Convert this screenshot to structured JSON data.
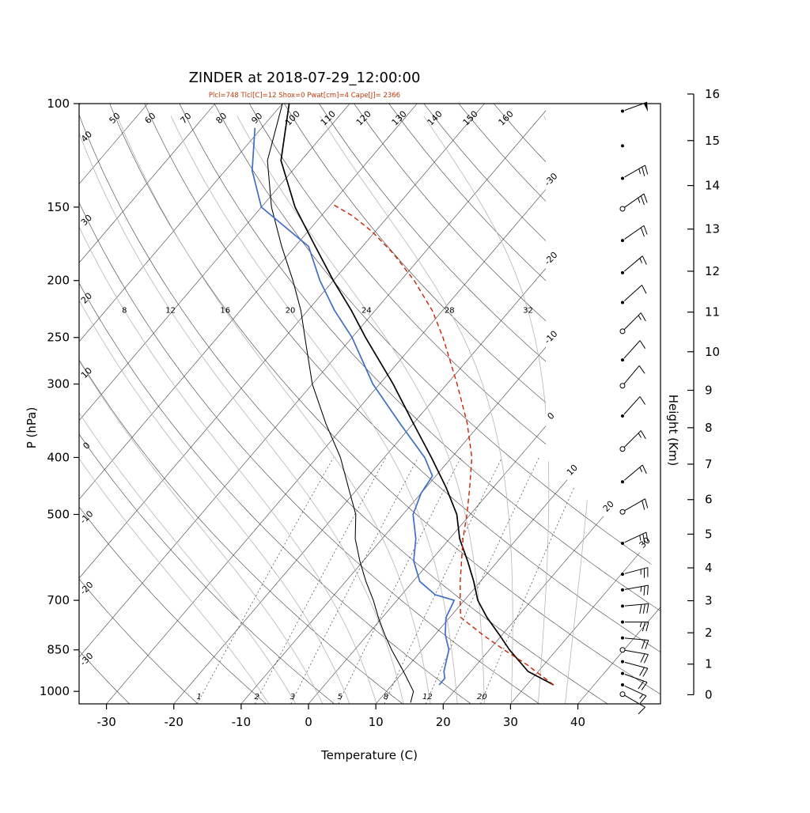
{
  "chart_data": {
    "type": "skewt_log_p",
    "station": "ZINDER",
    "title": "ZINDER at 2018-07-29_12:00:00",
    "subtitle": "Plcl=748 Tlcl[C]=12 Shox=0 Pwat[cm]=4 Cape[J]= 2366",
    "indices": {
      "plcl_hpa": 748,
      "tlcl_c": 12,
      "shox": 0,
      "pwat_cm": 4,
      "cape_j": 2366
    },
    "colors": {
      "temperature": "#000000",
      "dewpoint": "#3f6ec6",
      "parcel": "#cc2200",
      "aux_black": "#000000",
      "grid": "#2f2f2f",
      "moist_adiabat": "#b5b5b5",
      "mixing": "#444444",
      "subtitle": "#c0390b"
    },
    "axes": {
      "pressure_label": "P (hPa)",
      "pressure_ticks": [
        100,
        150,
        200,
        250,
        300,
        400,
        500,
        700,
        850,
        1000
      ],
      "pressure_range": [
        100,
        1050
      ],
      "temp_label": "Temperature (C)",
      "temp_ticks": [
        -30,
        -20,
        -10,
        0,
        10,
        20,
        30,
        40
      ],
      "height_label": "Height (Km)",
      "height_ticks": [
        0,
        1,
        2,
        3,
        4,
        5,
        6,
        7,
        8,
        9,
        10,
        11,
        12,
        13,
        14,
        15,
        16
      ]
    },
    "grid": {
      "isotherms": {
        "values": [
          -110,
          -100,
          -90,
          -80,
          -70,
          -60,
          -50,
          -40,
          -30,
          -20,
          -10,
          0,
          10,
          20,
          30,
          40
        ],
        "right_labels": [
          -30,
          -20,
          -10,
          0
        ],
        "wedge_labels": [
          10,
          20,
          30
        ]
      },
      "dry_adiabats": {
        "values": [
          -30,
          -20,
          -10,
          0,
          10,
          20,
          30,
          40,
          50,
          60,
          70,
          80,
          90,
          100,
          110,
          120,
          130,
          140,
          150,
          160
        ],
        "top_labels": [
          50,
          60,
          70,
          80,
          90,
          100,
          110,
          120,
          130,
          140,
          150,
          160
        ],
        "left_labels": [
          40,
          30,
          20,
          10,
          0,
          -10,
          -20,
          -30
        ]
      },
      "moist_adiabats": {
        "values": [
          -8,
          -4,
          0,
          4,
          8,
          12,
          16,
          20,
          24,
          28,
          32,
          36
        ],
        "labels": [
          8,
          12,
          16,
          20,
          24,
          28,
          32
        ],
        "label_pressure": 225
      },
      "mixing_ratio": {
        "values": [
          1,
          2,
          3,
          5,
          8,
          12,
          20
        ]
      }
    },
    "series": {
      "temperature": {
        "color": "#000000",
        "points": [
          [
            975,
            34
          ],
          [
            925,
            28.5
          ],
          [
            850,
            23
          ],
          [
            800,
            19.5
          ],
          [
            748,
            15.5
          ],
          [
            700,
            12
          ],
          [
            650,
            9
          ],
          [
            600,
            5.5
          ],
          [
            550,
            1.5
          ],
          [
            500,
            -2
          ],
          [
            450,
            -7
          ],
          [
            400,
            -13
          ],
          [
            350,
            -20
          ],
          [
            300,
            -28
          ],
          [
            250,
            -38
          ],
          [
            225,
            -43.5
          ],
          [
            200,
            -50
          ],
          [
            175,
            -57
          ],
          [
            150,
            -65
          ],
          [
            125,
            -73
          ],
          [
            100,
            -79
          ]
        ]
      },
      "dewpoint": {
        "color": "#3f6ec6",
        "points": [
          [
            975,
            17
          ],
          [
            950,
            17
          ],
          [
            925,
            16
          ],
          [
            850,
            14
          ],
          [
            800,
            11.5
          ],
          [
            750,
            9.5
          ],
          [
            700,
            8.5
          ],
          [
            685,
            5
          ],
          [
            650,
            1
          ],
          [
            600,
            -2.5
          ],
          [
            550,
            -5
          ],
          [
            500,
            -8.5
          ],
          [
            460,
            -10
          ],
          [
            430,
            -10.5
          ],
          [
            400,
            -14
          ],
          [
            350,
            -22
          ],
          [
            300,
            -31
          ],
          [
            250,
            -40
          ],
          [
            225,
            -46
          ],
          [
            200,
            -52
          ],
          [
            175,
            -58
          ],
          [
            150,
            -70
          ],
          [
            130,
            -76
          ],
          [
            110,
            -81
          ]
        ]
      },
      "parcel": {
        "color": "#cc2200",
        "points": [
          [
            975,
            34
          ],
          [
            900,
            27.4
          ],
          [
            850,
            22.2
          ],
          [
            800,
            17
          ],
          [
            748,
            11.6
          ],
          [
            700,
            9.4
          ],
          [
            650,
            7
          ],
          [
            600,
            4.6
          ],
          [
            550,
            2
          ],
          [
            500,
            -0.5
          ],
          [
            450,
            -3.5
          ],
          [
            400,
            -7
          ],
          [
            350,
            -12
          ],
          [
            300,
            -18.5
          ],
          [
            250,
            -26.5
          ],
          [
            225,
            -31.5
          ],
          [
            200,
            -38
          ],
          [
            180,
            -44.5
          ],
          [
            165,
            -50.5
          ],
          [
            155,
            -55.5
          ],
          [
            148,
            -60
          ]
        ]
      },
      "aux_black": {
        "color": "#000000",
        "points": [
          [
            1045,
            15
          ],
          [
            1000,
            14
          ],
          [
            925,
            10
          ],
          [
            850,
            5.5
          ],
          [
            800,
            2.5
          ],
          [
            750,
            -0.5
          ],
          [
            700,
            -3.5
          ],
          [
            650,
            -7
          ],
          [
            600,
            -10.5
          ],
          [
            550,
            -14
          ],
          [
            500,
            -17
          ],
          [
            450,
            -21.5
          ],
          [
            400,
            -26.5
          ],
          [
            350,
            -33
          ],
          [
            300,
            -40
          ],
          [
            250,
            -47
          ],
          [
            225,
            -51
          ],
          [
            200,
            -56
          ],
          [
            175,
            -62
          ],
          [
            150,
            -68.5
          ],
          [
            125,
            -75
          ],
          [
            100,
            -80
          ]
        ]
      }
    },
    "wind_barbs": {
      "levels": [
        {
          "p": 103,
          "spd": 50,
          "dir": 70,
          "open": false
        },
        {
          "p": 118,
          "spd": 0,
          "dir": 0,
          "open": false
        },
        {
          "p": 134,
          "spd": 25,
          "dir": 60,
          "open": false
        },
        {
          "p": 151,
          "spd": 25,
          "dir": 55,
          "open": true
        },
        {
          "p": 171,
          "spd": 20,
          "dir": 55,
          "open": false
        },
        {
          "p": 194,
          "spd": 15,
          "dir": 50,
          "open": false
        },
        {
          "p": 218,
          "spd": 12,
          "dir": 48,
          "open": false
        },
        {
          "p": 244,
          "spd": 15,
          "dir": 45,
          "open": true
        },
        {
          "p": 273,
          "spd": 12,
          "dir": 42,
          "open": false
        },
        {
          "p": 302,
          "spd": 10,
          "dir": 40,
          "open": true
        },
        {
          "p": 340,
          "spd": 8,
          "dir": 42,
          "open": false
        },
        {
          "p": 387,
          "spd": 15,
          "dir": 45,
          "open": true
        },
        {
          "p": 440,
          "spd": 15,
          "dir": 50,
          "open": false
        },
        {
          "p": 495,
          "spd": 20,
          "dir": 60,
          "open": true
        },
        {
          "p": 560,
          "spd": 25,
          "dir": 65,
          "open": false
        },
        {
          "p": 632,
          "spd": 25,
          "dir": 75,
          "open": false
        },
        {
          "p": 672,
          "spd": 25,
          "dir": 80,
          "open": false
        },
        {
          "p": 716,
          "spd": 30,
          "dir": 85,
          "open": false
        },
        {
          "p": 762,
          "spd": 25,
          "dir": 90,
          "open": false
        },
        {
          "p": 811,
          "spd": 20,
          "dir": 95,
          "open": false
        },
        {
          "p": 850,
          "spd": 20,
          "dir": 100,
          "open": true
        },
        {
          "p": 890,
          "spd": 20,
          "dir": 105,
          "open": false
        },
        {
          "p": 932,
          "spd": 20,
          "dir": 110,
          "open": false
        },
        {
          "p": 975,
          "spd": 15,
          "dir": 115,
          "open": false
        },
        {
          "p": 1011,
          "spd": 10,
          "dir": 120,
          "open": true
        }
      ]
    }
  }
}
